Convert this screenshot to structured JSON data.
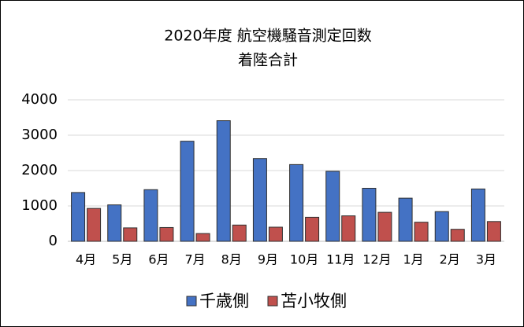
{
  "chart_data": {
    "type": "bar",
    "title": "2020年度 航空機騒音測定回数",
    "subtitle": "着陸合計",
    "categories": [
      "4月",
      "5月",
      "6月",
      "7月",
      "8月",
      "9月",
      "10月",
      "11月",
      "12月",
      "1月",
      "2月",
      "3月"
    ],
    "series": [
      {
        "name": "千歳側",
        "color": "#4472c4",
        "values": [
          1380,
          1030,
          1460,
          2830,
          3410,
          2340,
          2170,
          1980,
          1500,
          1220,
          840,
          1480
        ]
      },
      {
        "name": "苫小牧側",
        "color": "#c0504d",
        "values": [
          930,
          380,
          390,
          220,
          460,
          400,
          680,
          720,
          820,
          540,
          340,
          560
        ]
      }
    ],
    "ylim": [
      0,
      4000
    ],
    "yticks": [
      0,
      1000,
      2000,
      3000,
      4000
    ],
    "grid": true,
    "legend": "bottom"
  }
}
